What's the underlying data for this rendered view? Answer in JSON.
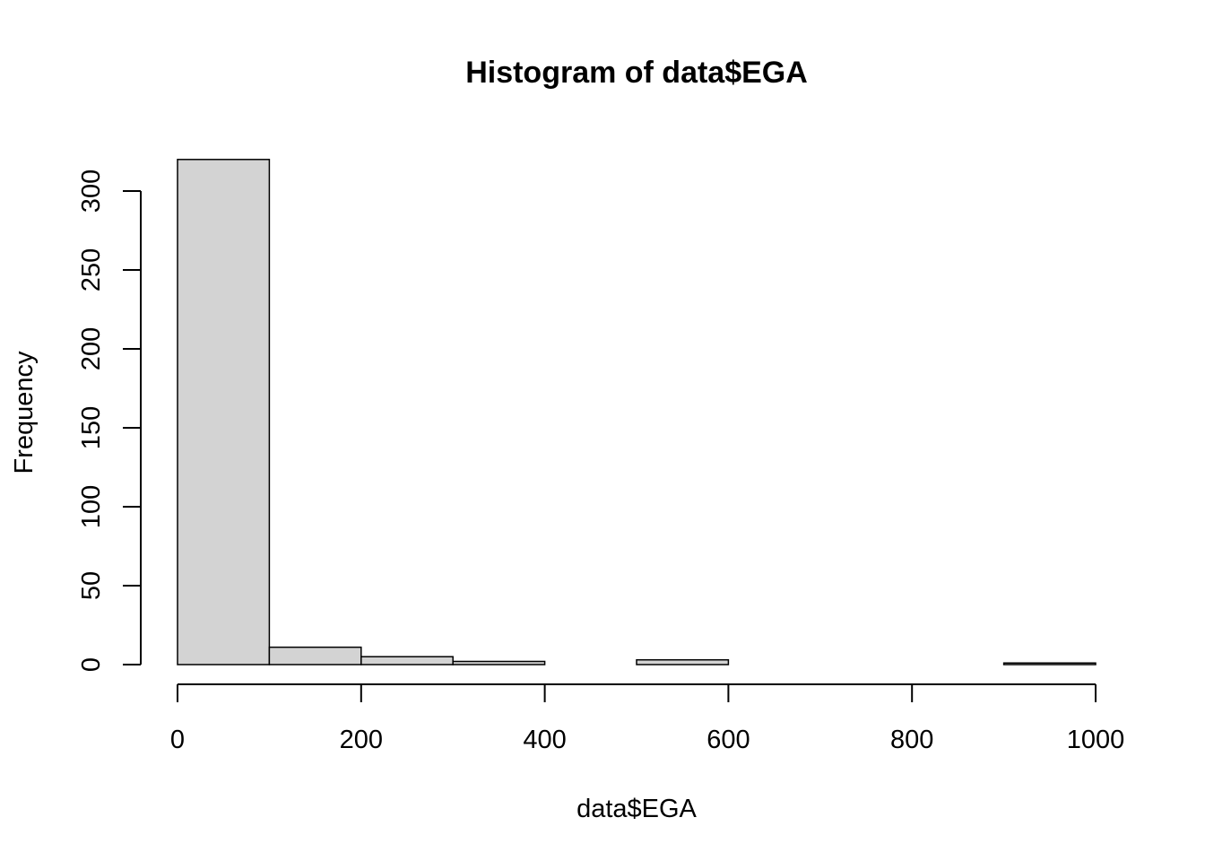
{
  "chart_data": {
    "type": "bar",
    "title": "Histogram of data$EGA",
    "xlabel": "data$EGA",
    "ylabel": "Frequency",
    "bins": [
      {
        "start": 0,
        "end": 100,
        "count": 320
      },
      {
        "start": 100,
        "end": 200,
        "count": 11
      },
      {
        "start": 200,
        "end": 300,
        "count": 5
      },
      {
        "start": 300,
        "end": 400,
        "count": 2
      },
      {
        "start": 400,
        "end": 500,
        "count": 0
      },
      {
        "start": 500,
        "end": 600,
        "count": 3
      },
      {
        "start": 600,
        "end": 700,
        "count": 0
      },
      {
        "start": 700,
        "end": 800,
        "count": 0
      },
      {
        "start": 800,
        "end": 900,
        "count": 0
      },
      {
        "start": 900,
        "end": 1000,
        "count": 1
      }
    ],
    "xlim": [
      0,
      1000
    ],
    "ylim": [
      0,
      320
    ],
    "x_ticks": [
      0,
      200,
      400,
      600,
      800,
      1000
    ],
    "y_ticks": [
      0,
      50,
      100,
      150,
      200,
      250,
      300
    ],
    "grid": false,
    "legend": "none",
    "colors": {
      "bar_fill": "#d3d3d3",
      "bar_stroke": "#000000",
      "axis": "#000000",
      "background": "#ffffff"
    }
  }
}
